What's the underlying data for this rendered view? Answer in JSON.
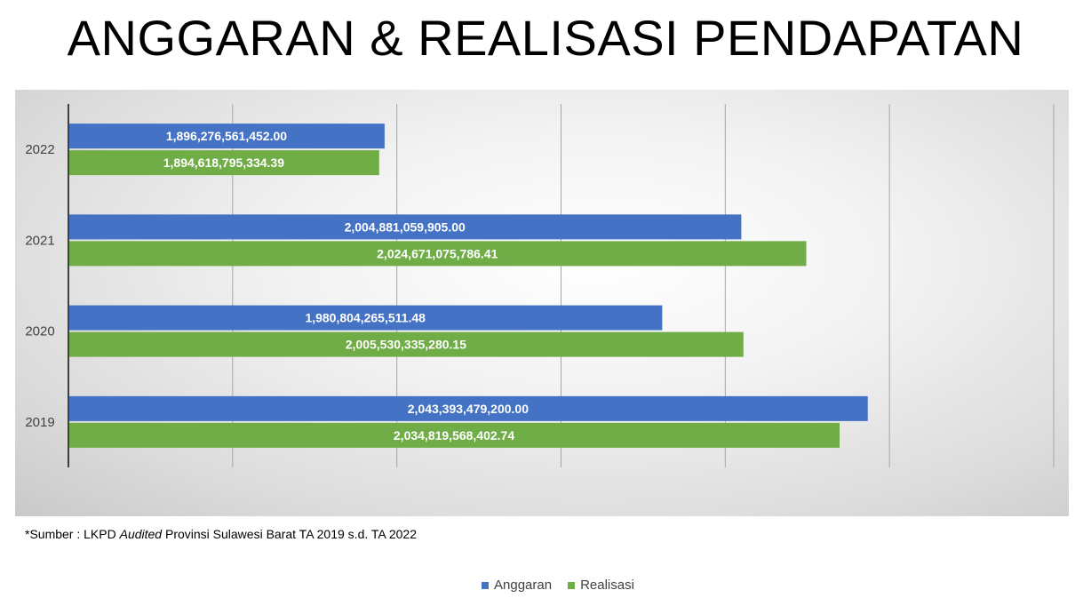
{
  "title": "ANGGARAN & REALISASI PENDAPATAN",
  "source": {
    "prefix": "*Sumber : LKPD ",
    "italic": "Audited",
    "suffix": " Provinsi Sulawesi Barat TA 2019 s.d. TA 2022"
  },
  "colors": {
    "anggaran": "#4472C4",
    "realisasi": "#70AD47"
  },
  "chart_data": {
    "type": "bar",
    "orientation": "horizontal",
    "title": "ANGGARAN & REALISASI PENDAPATAN",
    "categories": [
      "2022",
      "2021",
      "2020",
      "2019"
    ],
    "series": [
      {
        "name": "Anggaran",
        "values": [
          1896276561452.0,
          2004881059905.0,
          1980804265511.48,
          2043393479200.0
        ],
        "labels": [
          "1,896,276,561,452.00",
          "2,004,881,059,905.00",
          "1,980,804,265,511.48",
          "2,043,393,479,200.00"
        ]
      },
      {
        "name": "Realisasi",
        "values": [
          1894618795334.39,
          2024671075786.41,
          2005530335280.15,
          2034819568402.74
        ],
        "labels": [
          "1,894,618,795,334.39",
          "2,024,671,075,786.41",
          "2,005,530,335,280.15",
          "2,034,819,568,402.74"
        ]
      }
    ],
    "xlim": [
      1800000000000,
      2100000000000
    ],
    "grid": true,
    "legend_position": "bottom"
  }
}
